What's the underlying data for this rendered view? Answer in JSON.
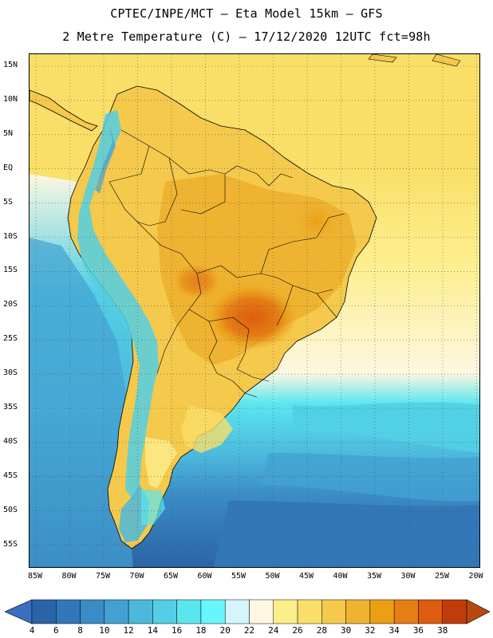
{
  "header": {
    "title_line1": "CPTEC/INPE/MCT –  Eta Model 15km – GFS",
    "title_line2": "2 Metre Temperature (C) – 17/12/2020 12UTC fct=98h"
  },
  "map": {
    "lat_labels": [
      "15N",
      "10N",
      "5N",
      "EQ",
      "5S",
      "10S",
      "15S",
      "20S",
      "25S",
      "30S",
      "35S",
      "40S",
      "45S",
      "50S",
      "55S"
    ],
    "lon_labels": [
      "85W",
      "80W",
      "75W",
      "70W",
      "65W",
      "60W",
      "55W",
      "50W",
      "45W",
      "40W",
      "35W",
      "30W",
      "25W",
      "20W"
    ],
    "field": "2 Metre Temperature (C)",
    "region": "South America"
  },
  "colorbar": {
    "labels": [
      "4",
      "6",
      "8",
      "10",
      "12",
      "14",
      "16",
      "18",
      "20",
      "22",
      "24",
      "26",
      "28",
      "30",
      "32",
      "34",
      "36",
      "38"
    ],
    "colors": [
      "#2b63a8",
      "#3277b8",
      "#3a8bc6",
      "#43a1d2",
      "#4cb8dc",
      "#52cfe4",
      "#5ae6ef",
      "#66f6fb",
      "#d3f5fb",
      "#fdf7e1",
      "#fdee8c",
      "#f9df68",
      "#f4c94c",
      "#eeb331",
      "#ea9f14",
      "#e57e15",
      "#dd5c0f",
      "#c13c0b"
    ],
    "under_color": "#3a6fc0",
    "over_color": "#b8480d"
  }
}
